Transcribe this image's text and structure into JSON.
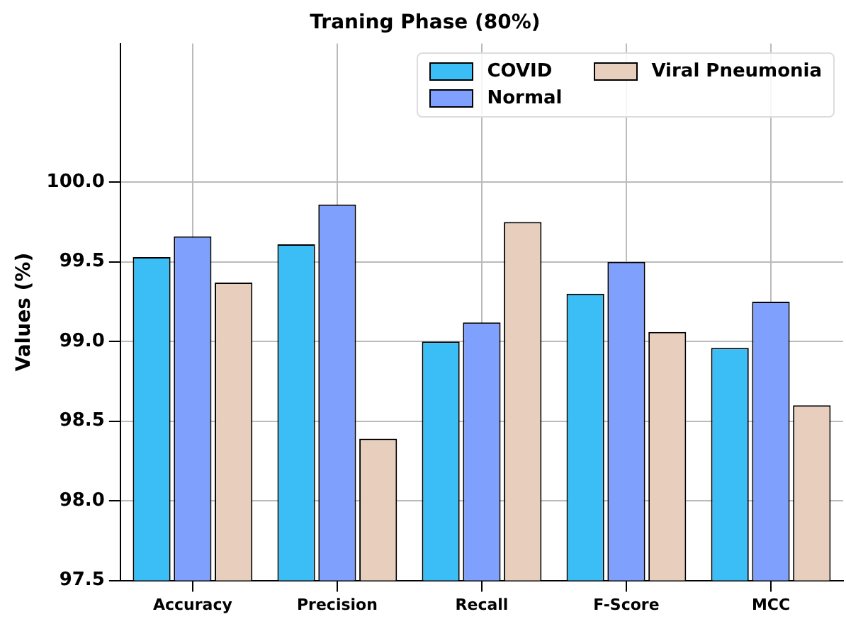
{
  "chart_data": {
    "type": "bar",
    "title": "Traning Phase (80%)",
    "ylabel": "Values (%)",
    "categories": [
      "Accuracy",
      "Precision",
      "Recall",
      "F-Score",
      "MCC"
    ],
    "series": [
      {
        "name": "COVID",
        "color": "#3bbef5",
        "values": [
          99.53,
          99.61,
          99.0,
          99.3,
          98.96
        ]
      },
      {
        "name": "Normal",
        "color": "#7fa0fc",
        "values": [
          99.66,
          99.86,
          99.12,
          99.5,
          99.25
        ]
      },
      {
        "name": "Viral Pneumonia",
        "color": "#e8cfbd",
        "values": [
          99.37,
          98.39,
          99.75,
          99.06,
          98.6
        ]
      }
    ],
    "ylim": [
      97.5,
      100.87
    ],
    "yticks": [
      {
        "value": 97.5,
        "label": "97.5"
      },
      {
        "value": 98,
        "label": "98.0"
      },
      {
        "value": 98.5,
        "label": "98.5"
      },
      {
        "value": 99,
        "label": "99.0"
      },
      {
        "value": 99.5,
        "label": "99.5"
      },
      {
        "value": 100,
        "label": "100.0"
      }
    ],
    "grid": true,
    "legend": "top right"
  }
}
